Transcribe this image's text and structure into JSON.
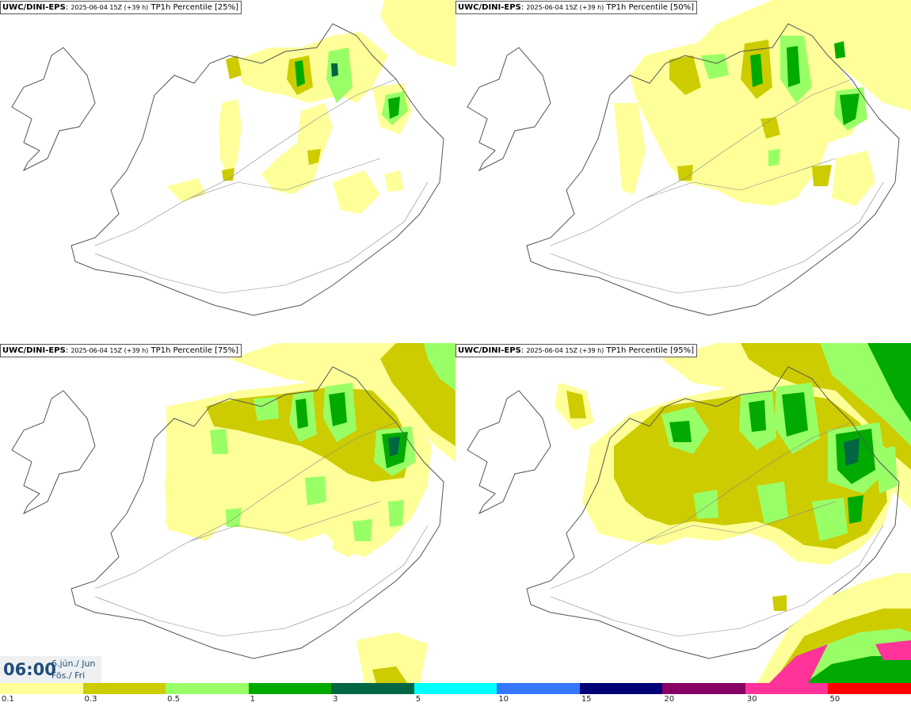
{
  "panels": [
    {
      "model": "UWC/DINI-EPS",
      "run": "2025-06-04 15Z (+39 h)",
      "field": "TP1h Percentile [25%]"
    },
    {
      "model": "UWC/DINI-EPS",
      "run": "2025-06-04 15Z (+39 h)",
      "field": "TP1h Percentile [50%]"
    },
    {
      "model": "UWC/DINI-EPS",
      "run": "2025-06-04 15Z (+39 h)",
      "field": "TP1h Percentile [75%]"
    },
    {
      "model": "UWC/DINI-EPS",
      "run": "2025-06-04 15Z (+39 h)",
      "field": "TP1h Percentile [95%]"
    }
  ],
  "valid_time": {
    "hour": "06:00",
    "date": "6.jún./ Jun",
    "day": "Fös./ Fri"
  },
  "legend": {
    "labels": [
      "0.1",
      "0.3",
      "0.5",
      "1",
      "3",
      "5",
      "10",
      "15",
      "20",
      "30",
      "50"
    ],
    "colors": [
      "#ffff99",
      "#cccc00",
      "#99ff66",
      "#00aa00",
      "#006644",
      "#00ffff",
      "#3377ff",
      "#000077",
      "#880066",
      "#ff3399",
      "#ff0000"
    ]
  },
  "map_colors": {
    "coast": "#555555",
    "roads": "#888888",
    "level1": "#ffff99",
    "level2": "#cccc00",
    "level3": "#99ff66",
    "level4": "#00aa00",
    "level5": "#006644"
  }
}
